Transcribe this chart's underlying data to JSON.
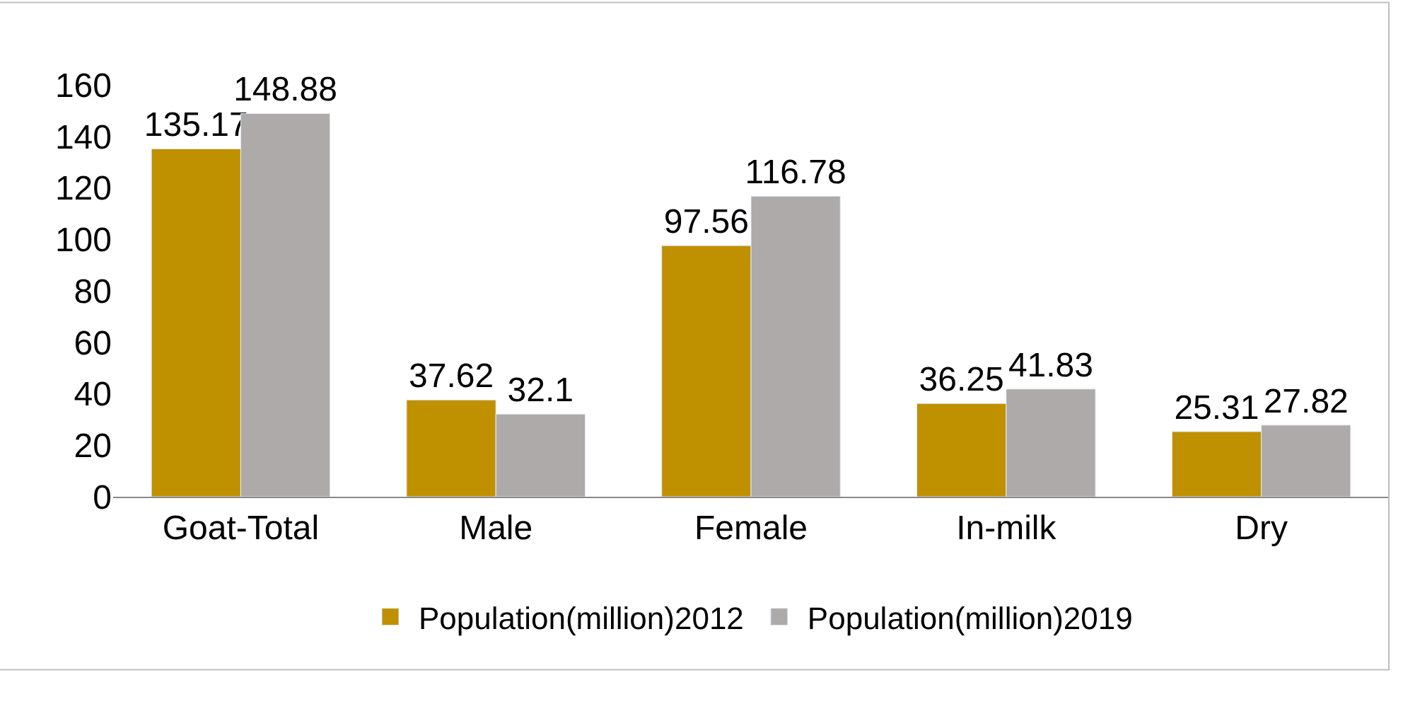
{
  "chart_data": {
    "type": "bar",
    "categories": [
      "Goat-Total",
      "Male",
      "Female",
      "In-milk",
      "Dry"
    ],
    "series": [
      {
        "name": "Population(million)2012",
        "color": "#bf9000",
        "values": [
          135.17,
          37.62,
          97.56,
          36.25,
          25.31
        ]
      },
      {
        "name": "Population(million)2019",
        "color": "#aeaaaa",
        "values": [
          148.88,
          32.1,
          116.78,
          41.83,
          27.82
        ]
      }
    ],
    "ylim": [
      0,
      160
    ],
    "yticks": [
      0,
      20,
      40,
      60,
      80,
      100,
      120,
      140,
      160
    ],
    "legend": "bottom",
    "data_labels": true
  }
}
